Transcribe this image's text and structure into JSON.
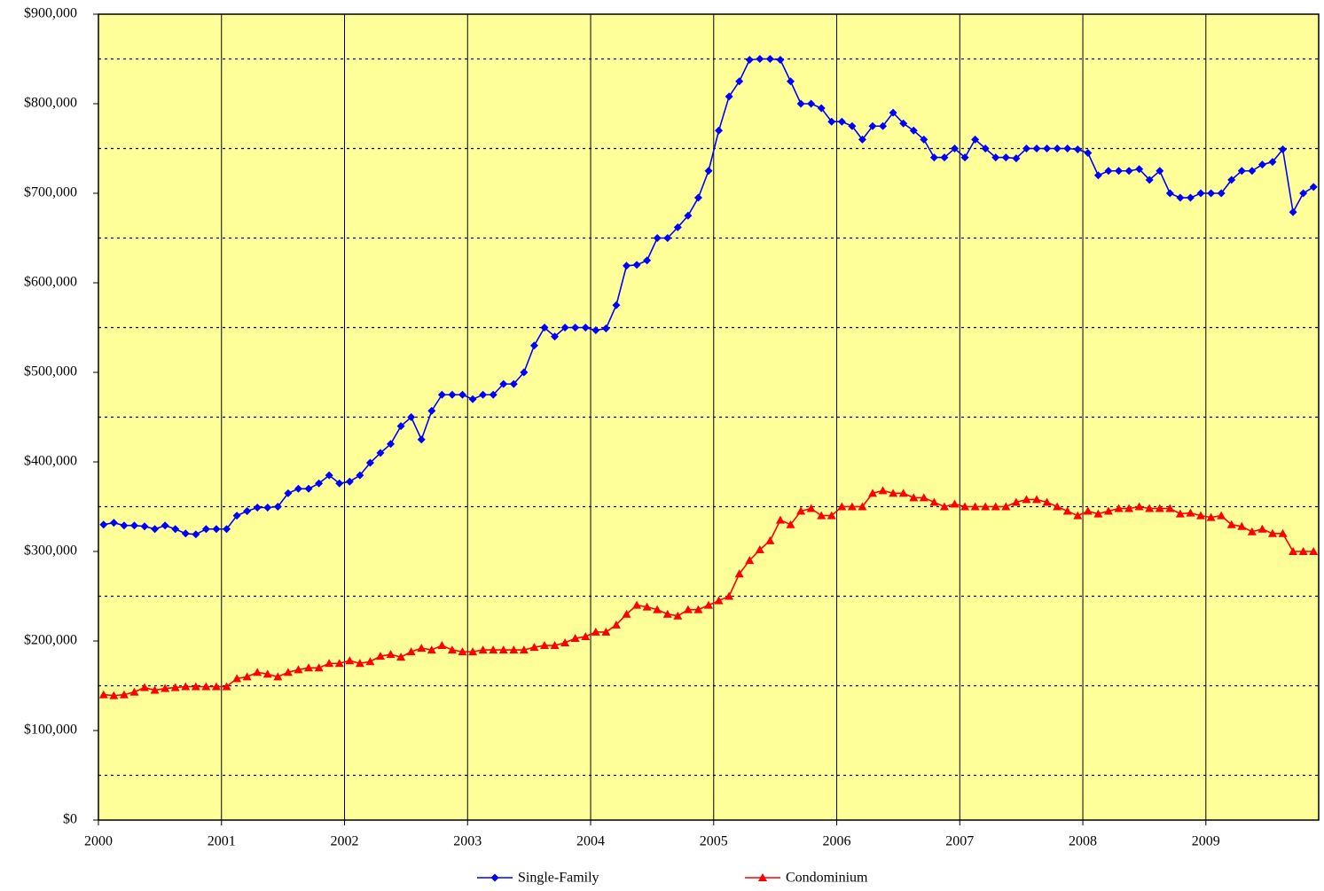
{
  "chart_data": {
    "type": "line",
    "categories": [
      "2000",
      null,
      null,
      null,
      null,
      null,
      null,
      null,
      null,
      null,
      null,
      null,
      "2001",
      null,
      null,
      null,
      null,
      null,
      null,
      null,
      null,
      null,
      null,
      null,
      "2002",
      null,
      null,
      null,
      null,
      null,
      null,
      null,
      null,
      null,
      null,
      null,
      "2003",
      null,
      null,
      null,
      null,
      null,
      null,
      null,
      null,
      null,
      null,
      null,
      "2004",
      null,
      null,
      null,
      null,
      null,
      null,
      null,
      null,
      null,
      null,
      null,
      "2005",
      null,
      null,
      null,
      null,
      null,
      null,
      null,
      null,
      null,
      null,
      null,
      "2006",
      null,
      null,
      null,
      null,
      null,
      null,
      null,
      null,
      null,
      null,
      null,
      "2007",
      null,
      null,
      null,
      null,
      null,
      null,
      null,
      null,
      null,
      null,
      null,
      "2008",
      null,
      null,
      null,
      null,
      null,
      null,
      null,
      null,
      null,
      null,
      null,
      "2009",
      null,
      null,
      null,
      null,
      null,
      null,
      null,
      null,
      null,
      null
    ],
    "series": [
      {
        "name": "Single-Family",
        "color": "#0000ff",
        "marker": "diamond",
        "values": [
          330000,
          332000,
          329000,
          329000,
          328000,
          325000,
          329000,
          325000,
          320000,
          319000,
          325000,
          325000,
          325000,
          340000,
          345000,
          349000,
          349000,
          350000,
          365000,
          370000,
          370000,
          376000,
          385000,
          376000,
          378000,
          385000,
          399000,
          410000,
          420000,
          440000,
          450000,
          425000,
          457000,
          475000,
          475000,
          475000,
          470000,
          475000,
          475000,
          487000,
          487000,
          500000,
          530000,
          550000,
          540000,
          550000,
          550000,
          550000,
          547000,
          549000,
          575000,
          619000,
          620000,
          625000,
          650000,
          650000,
          662000,
          675000,
          695000,
          725000,
          770000,
          808000,
          825000,
          849000,
          850000,
          850000,
          849000,
          825000,
          800000,
          800000,
          795000,
          780000,
          780000,
          775000,
          760000,
          775000,
          775000,
          790000,
          778000,
          770000,
          760000,
          740000,
          740000,
          750000,
          740000,
          760000,
          750000,
          740000,
          740000,
          739000,
          750000,
          750000,
          750000,
          750000,
          750000,
          749000,
          745000,
          720000,
          725000,
          725000,
          725000,
          727000,
          715000,
          725000,
          700000,
          695000,
          695000,
          700000,
          700000,
          700000,
          715000,
          725000,
          725000,
          732000,
          735000,
          749000,
          679000,
          700000,
          707000
        ]
      },
      {
        "name": "Condominium",
        "color": "#ff0000",
        "marker": "triangle",
        "values": [
          140000,
          139000,
          140000,
          143000,
          148000,
          145000,
          147000,
          148000,
          149000,
          149000,
          149000,
          149000,
          149000,
          158000,
          160000,
          165000,
          163000,
          160000,
          165000,
          168000,
          170000,
          170000,
          175000,
          175000,
          178000,
          175000,
          177000,
          183000,
          185000,
          182000,
          188000,
          192000,
          190000,
          195000,
          190000,
          188000,
          188000,
          190000,
          190000,
          190000,
          190000,
          190000,
          193000,
          195000,
          195000,
          198000,
          203000,
          205000,
          210000,
          210000,
          218000,
          230000,
          240000,
          238000,
          235000,
          230000,
          228000,
          235000,
          235000,
          240000,
          245000,
          250000,
          275000,
          290000,
          302000,
          312000,
          335000,
          330000,
          345000,
          348000,
          340000,
          340000,
          350000,
          350000,
          350000,
          365000,
          368000,
          365000,
          365000,
          360000,
          360000,
          355000,
          350000,
          353000,
          350000,
          350000,
          350000,
          350000,
          350000,
          355000,
          358000,
          358000,
          355000,
          350000,
          345000,
          340000,
          345000,
          342000,
          345000,
          348000,
          348000,
          350000,
          348000,
          348000,
          348000,
          342000,
          343000,
          340000,
          338000,
          340000,
          330000,
          328000,
          322000,
          325000,
          320000,
          320000,
          300000,
          300000,
          300000
        ]
      }
    ],
    "ylim": [
      0,
      900000
    ],
    "yticks": [
      {
        "value": 0,
        "label": "$0"
      },
      {
        "value": 100000,
        "label": "$100,000"
      },
      {
        "value": 200000,
        "label": "$200,000"
      },
      {
        "value": 300000,
        "label": "$300,000"
      },
      {
        "value": 400000,
        "label": "$400,000"
      },
      {
        "value": 500000,
        "label": "$500,000"
      },
      {
        "value": 600000,
        "label": "$600,000"
      },
      {
        "value": 700000,
        "label": "$700,000"
      },
      {
        "value": 800000,
        "label": "$800,000"
      },
      {
        "value": 900000,
        "label": "$900,000"
      }
    ],
    "minor_grid_yticks": [
      50000,
      150000,
      250000,
      350000,
      450000,
      550000,
      650000,
      750000,
      850000
    ],
    "background": "#ffff99",
    "legend": "bottom"
  }
}
